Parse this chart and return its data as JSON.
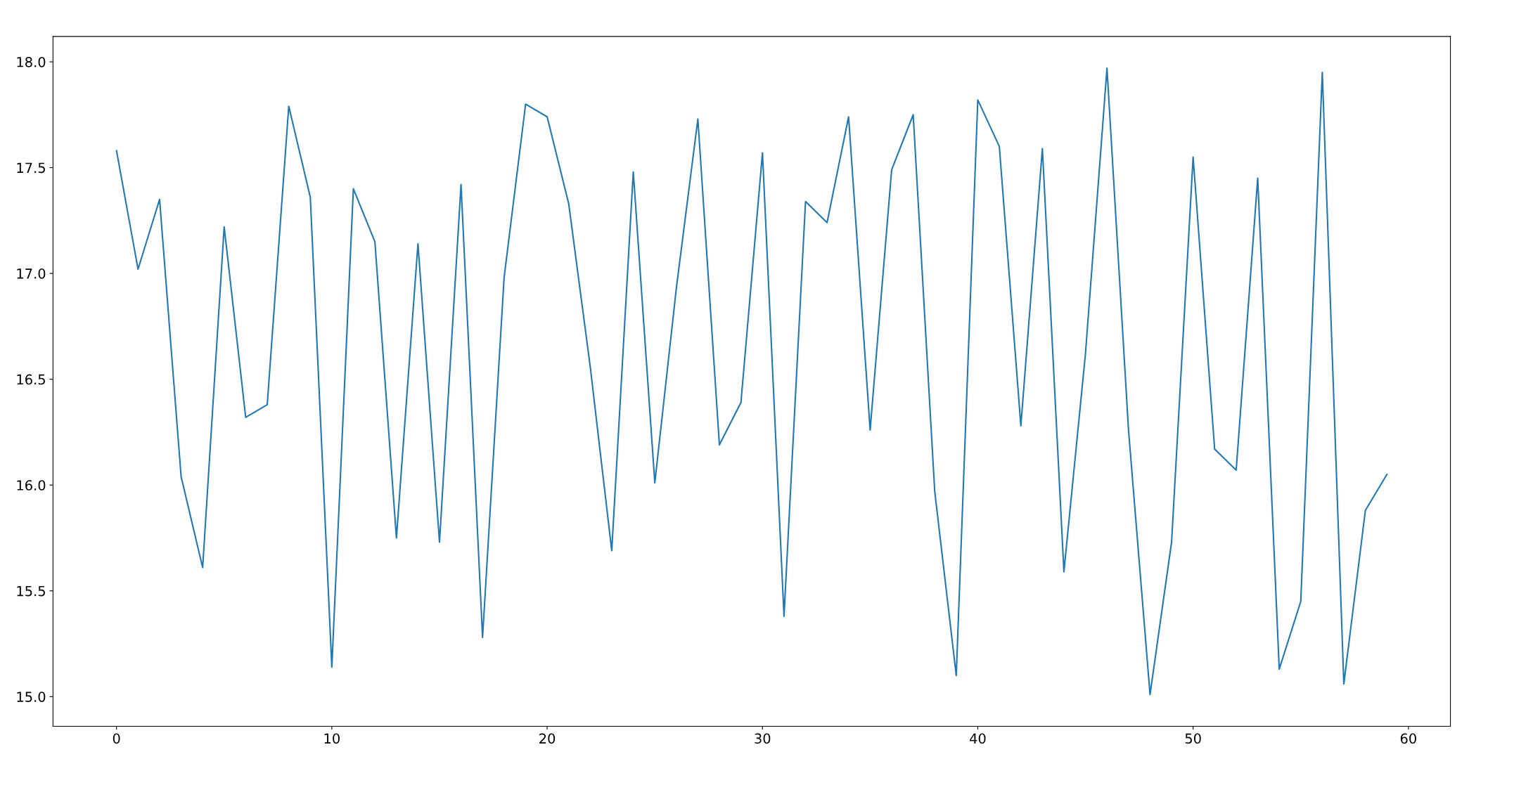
{
  "chart_data": {
    "type": "line",
    "x": [
      0,
      1,
      2,
      3,
      4,
      5,
      6,
      7,
      8,
      9,
      10,
      11,
      12,
      13,
      14,
      15,
      16,
      17,
      18,
      19,
      20,
      21,
      22,
      23,
      24,
      25,
      26,
      27,
      28,
      29,
      30,
      31,
      32,
      33,
      34,
      35,
      36,
      37,
      38,
      39,
      40,
      41,
      42,
      43,
      44,
      45,
      46,
      47,
      48,
      49,
      50,
      51,
      52,
      53,
      54,
      55,
      56,
      57,
      58,
      59
    ],
    "series": [
      {
        "color": "#1f77b4",
        "values": [
          17.58,
          17.02,
          17.35,
          16.04,
          15.61,
          17.22,
          16.32,
          16.38,
          17.79,
          17.36,
          15.14,
          17.4,
          17.15,
          15.75,
          17.14,
          15.73,
          17.42,
          15.28,
          16.98,
          17.8,
          17.74,
          17.33,
          16.56,
          15.69,
          17.48,
          16.01,
          16.93,
          17.73,
          16.19,
          16.39,
          17.57,
          15.38,
          17.34,
          17.24,
          17.74,
          16.26,
          17.49,
          17.75,
          15.97,
          15.1,
          17.82,
          17.6,
          16.28,
          17.59,
          15.59,
          16.62,
          17.97,
          16.26,
          15.01,
          15.73,
          17.55,
          16.17,
          16.07,
          17.45,
          15.13,
          15.45,
          17.95,
          15.06,
          15.88,
          16.05
        ]
      }
    ],
    "xlim": [
      -2.95,
      61.95
    ],
    "ylim": [
      14.86,
      18.12
    ],
    "xticks": [
      0,
      10,
      20,
      30,
      40,
      50,
      60
    ],
    "yticks": [
      {
        "value": 15,
        "label": "15.0"
      },
      15.5,
      {
        "value": 16,
        "label": "16.0"
      },
      16.5,
      {
        "value": 17,
        "label": "17.0"
      },
      17.5,
      {
        "value": 18,
        "label": "18.0"
      }
    ],
    "grid": false,
    "legend": false,
    "marker": "none",
    "line_style": "solid"
  }
}
